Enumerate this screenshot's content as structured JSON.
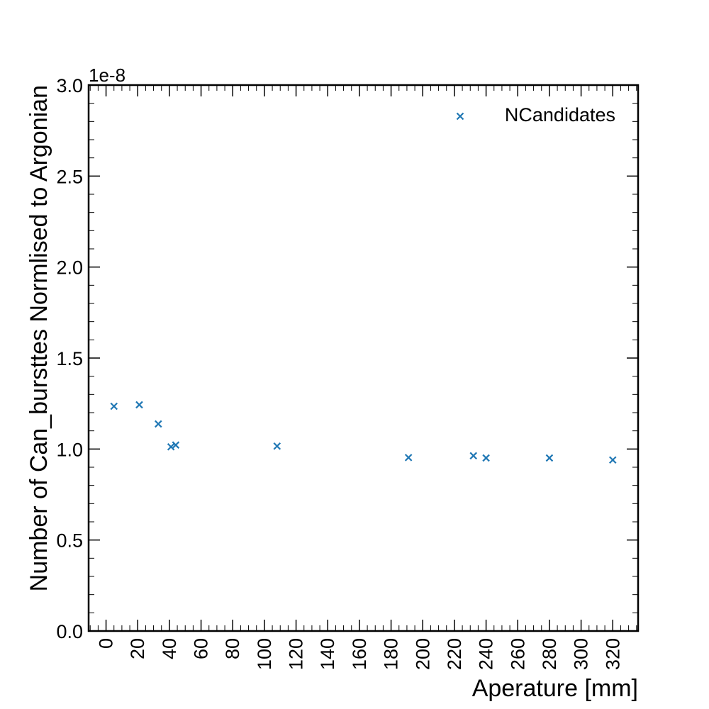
{
  "colors": {
    "series": "#1f77b4",
    "axis": "#000000",
    "background": "#ffffff"
  },
  "chart_data": {
    "type": "scatter",
    "xlabel": "Aperature [mm]",
    "ylabel": "Number of Can_bursttes Normlised to Argonian",
    "y_offset_label": "1e-8",
    "xlim": [
      -11,
      336
    ],
    "ylim": [
      0.0,
      3.0
    ],
    "x_ticks": [
      0,
      20,
      40,
      60,
      80,
      100,
      120,
      140,
      160,
      180,
      200,
      220,
      240,
      260,
      280,
      300,
      320
    ],
    "x_tick_labels": [
      "0",
      "20",
      "40",
      "60",
      "80",
      "100",
      "120",
      "140",
      "160",
      "180",
      "200",
      "220",
      "240",
      "260",
      "280",
      "300",
      "320"
    ],
    "y_ticks": [
      0.0,
      0.5,
      1.0,
      1.5,
      2.0,
      2.5,
      3.0
    ],
    "y_tick_labels": [
      "0.0",
      "0.5",
      "1.0",
      "1.5",
      "2.0",
      "2.5",
      "3.0"
    ],
    "grid": false,
    "legend": {
      "position": "top-right",
      "entries": [
        "NCandidates"
      ]
    },
    "series": [
      {
        "name": "NCandidates",
        "marker": "x",
        "x": [
          5,
          21,
          33,
          41,
          44,
          108,
          191,
          232,
          240,
          280,
          320
        ],
        "y": [
          1.235,
          1.243,
          1.138,
          1.012,
          1.022,
          1.016,
          0.953,
          0.963,
          0.951,
          0.951,
          0.94
        ]
      }
    ]
  }
}
